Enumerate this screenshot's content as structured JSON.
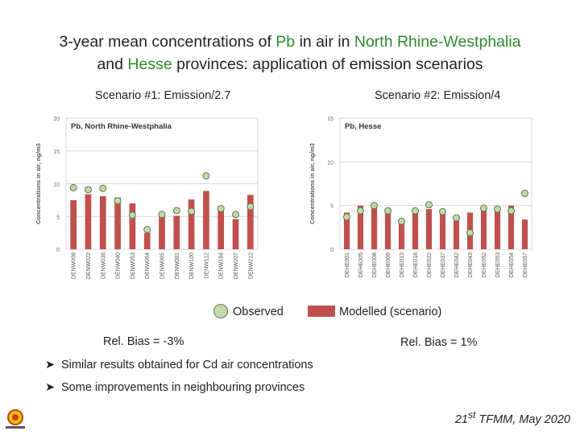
{
  "title": {
    "line1_pre": "3-year mean concentrations of ",
    "line1_pb": "Pb",
    "line1_mid": " in air in ",
    "line1_region": "North Rhine-Westphalia",
    "line2_and": "and ",
    "line2_region": "Hesse",
    "line2_post": " provinces: application  of emission scenarios"
  },
  "scenario1_label": "Scenario #1: Emission/2.7",
  "scenario2_label": "Scenario #2: Emission/4",
  "legend": {
    "observed": "Observed",
    "modelled": "Modelled (scenario)"
  },
  "bias": {
    "left": "Rel. Bias = -3%",
    "right": "Rel. Bias = 1%"
  },
  "bullets": [
    "Similar results obtained for Cd air concentrations",
    "Some improvements in neighbouring provinces"
  ],
  "footer": {
    "pre": "21",
    "sup": "st",
    "post": " TFMM, May 2020"
  },
  "colors": {
    "bar": "#c0504d",
    "observed_fill": "#c3d9a8",
    "observed_stroke": "#5a7a54",
    "highlight": "#2e8b2e"
  },
  "chart_data": [
    {
      "type": "bar",
      "title": "Pb, North Rhine-Westphalia",
      "ylabel": "Concentrations in air, ng/m3",
      "ylim": [
        0,
        20
      ],
      "yticks": [
        0,
        5,
        10,
        15,
        20
      ],
      "grid": true,
      "categories": [
        "DENW008",
        "DENW022",
        "DENW038",
        "DENW040",
        "DENW053",
        "DENW064",
        "DENW065",
        "DENW081",
        "DENW100",
        "DENW112",
        "DENW194",
        "DENW207",
        "DENW212"
      ],
      "series": [
        {
          "name": "Modelled (scenario)",
          "kind": "bar",
          "values": [
            7.5,
            8.4,
            8.1,
            7.9,
            7.0,
            2.5,
            5.2,
            5.1,
            7.6,
            8.9,
            6.1,
            4.6,
            8.3
          ]
        },
        {
          "name": "Observed",
          "kind": "point",
          "values": [
            9.4,
            9.1,
            9.3,
            7.4,
            5.2,
            3.0,
            5.3,
            5.9,
            5.8,
            11.2,
            6.2,
            5.3,
            6.5
          ]
        }
      ]
    },
    {
      "type": "bar",
      "title": "Pb, Hesse",
      "ylabel": "Concentrations in air, ng/m3",
      "ylim": [
        0,
        15
      ],
      "yticks": [
        0,
        5,
        10,
        15
      ],
      "grid": true,
      "categories": [
        "DEHE001",
        "DEHE005",
        "DEHE008",
        "DEHE009",
        "DEHE013",
        "DEHE018",
        "DEHE022",
        "DEHE037",
        "DEHE042",
        "DEHE043",
        "DEHE052",
        "DEHE053",
        "DEHE054",
        "DEHE057"
      ],
      "series": [
        {
          "name": "Modelled (scenario)",
          "kind": "bar",
          "values": [
            4.2,
            5.0,
            4.9,
            4.7,
            3.1,
            4.6,
            4.6,
            4.1,
            3.3,
            4.2,
            4.8,
            4.9,
            5.0,
            3.4
          ]
        },
        {
          "name": "Observed",
          "kind": "point",
          "values": [
            3.7,
            4.4,
            5.0,
            4.4,
            3.2,
            4.4,
            5.1,
            4.3,
            3.6,
            1.9,
            4.7,
            4.6,
            4.4,
            6.4
          ]
        }
      ]
    }
  ]
}
